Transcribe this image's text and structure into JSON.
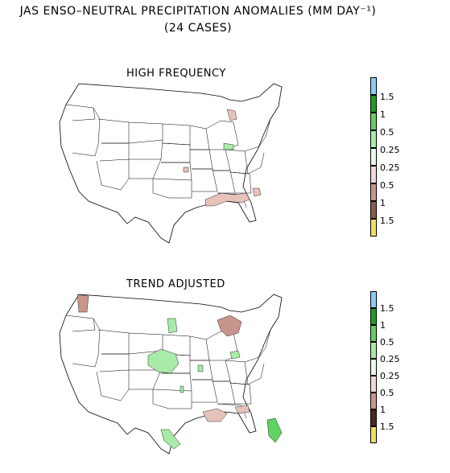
{
  "title": {
    "line1": "JAS ENSO–NEUTRAL PRECIPITATION ANOMALIES (MM DAY⁻¹)",
    "line2": "(24 CASES)"
  },
  "panels": [
    {
      "title": "HIGH FREQUENCY"
    },
    {
      "title": "TREND ADJUSTED"
    }
  ],
  "legend": {
    "labels": [
      "1.5",
      "1",
      "0.5",
      "0.25",
      "0.25",
      "0.5",
      "1",
      "1.5"
    ],
    "colors": [
      "#87cefa",
      "#1e9e1e",
      "#5fd35f",
      "#a8eba8",
      "#e8fbe8",
      "#f0d9d6",
      "#c8958c",
      "#8b5a4e",
      "#4a2a20",
      "#f0e060"
    ]
  },
  "colors": {
    "wet_light": "#a8eba8",
    "wet_mid": "#5fd35f",
    "dry_light": "#e6c2bb",
    "dry_mid": "#c8958c"
  }
}
